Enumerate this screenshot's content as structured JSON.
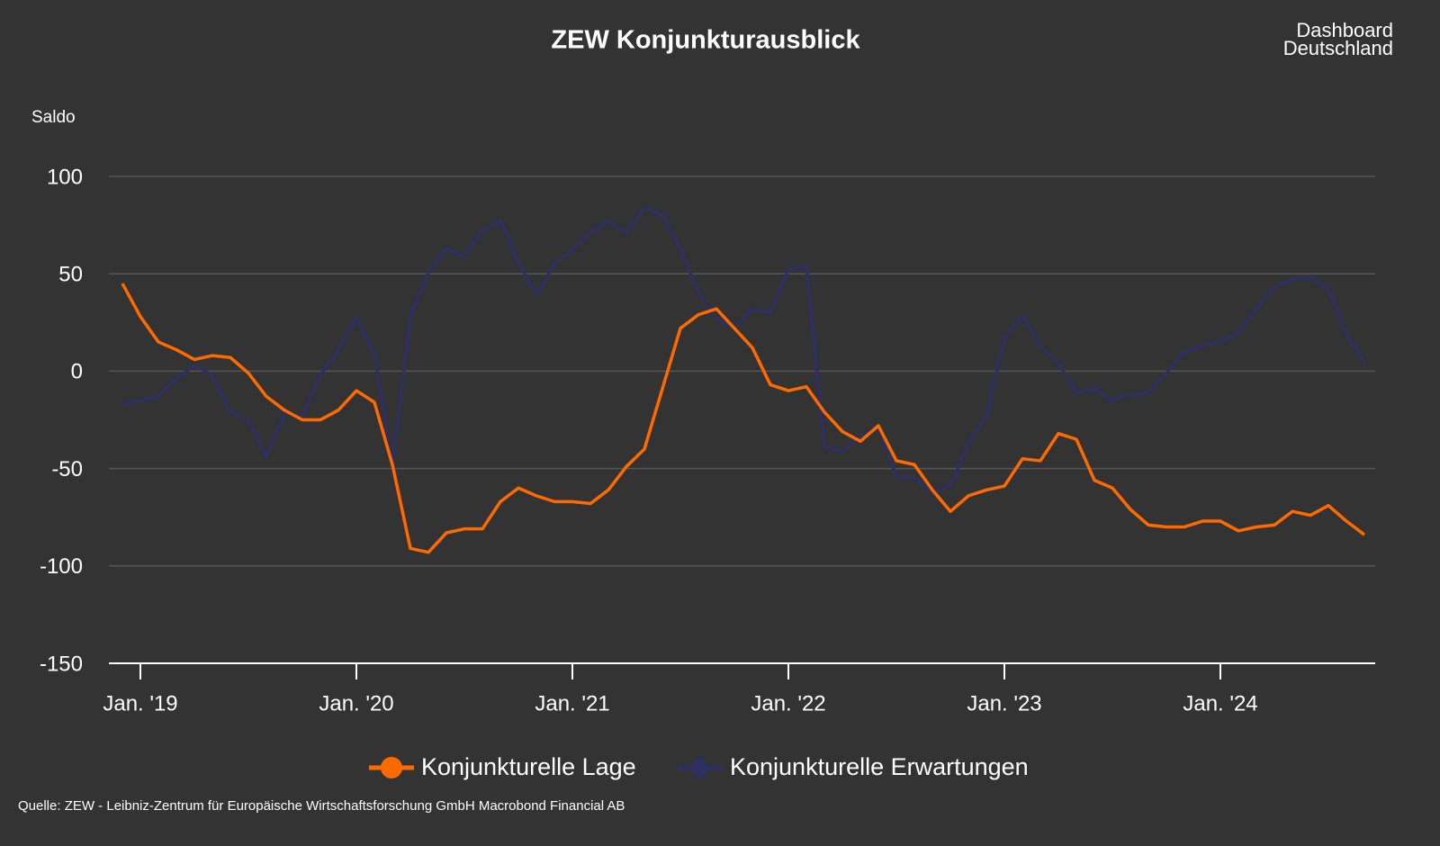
{
  "chart_data": {
    "type": "line",
    "title": "ZEW Konjunkturausblick",
    "y_label": "Saldo",
    "logo": [
      "Dashboard",
      "Deutschland"
    ],
    "source": "Quelle: ZEW - Leibniz-Zentrum für Europäische Wirtschaftsforschung GmbH Macrobond Financial AB",
    "categories": [
      null,
      "Jan. '19",
      null,
      null,
      null,
      null,
      null,
      null,
      null,
      null,
      null,
      null,
      null,
      "Jan. '20",
      null,
      null,
      null,
      null,
      null,
      null,
      null,
      null,
      null,
      null,
      null,
      "Jan. '21",
      null,
      null,
      null,
      null,
      null,
      null,
      null,
      null,
      null,
      null,
      null,
      "Jan. '22",
      null,
      null,
      null,
      null,
      null,
      null,
      null,
      null,
      null,
      null,
      null,
      "Jan. '23",
      null,
      null,
      null,
      null,
      null,
      null,
      null,
      null,
      null,
      null,
      null,
      "Jan. '24",
      null,
      null,
      null,
      null,
      null,
      null,
      null,
      null
    ],
    "series": [
      {
        "name": "Konjunkturelle Lage",
        "color": "#ff6a00",
        "marker": "circle",
        "values": [
          45,
          28,
          15,
          11,
          6,
          8,
          7,
          -1,
          -13,
          -20,
          -25,
          -25,
          -20,
          -10,
          -16,
          -48,
          -91,
          -93,
          -83,
          -81,
          -81,
          -67,
          -60,
          -64,
          -67,
          -67,
          -68,
          -61,
          -49,
          -40,
          -9,
          22,
          29,
          32,
          22,
          12,
          -7,
          -10,
          -8,
          -21,
          -31,
          -36,
          -28,
          -46,
          -48,
          -61,
          -72,
          -64,
          -61,
          -59,
          -45,
          -46,
          -32,
          -35,
          -56,
          -60,
          -71,
          -79,
          -80,
          -80,
          -77,
          -77,
          -82,
          -80,
          -79,
          -72,
          -74,
          -69,
          -77,
          -84
        ]
      },
      {
        "name": "Konjunkturelle Erwartungen",
        "color": "#2e2f63",
        "marker": "diamond",
        "values": [
          -17,
          -15,
          -13,
          -4,
          3,
          -2,
          -21,
          -25,
          -44,
          -22,
          -23,
          -2,
          11,
          27,
          9,
          -49,
          28,
          51,
          63,
          59,
          72,
          77,
          56,
          39,
          55,
          62,
          71,
          77,
          71,
          84,
          80,
          63,
          40,
          27,
          22,
          32,
          30,
          52,
          54,
          -39,
          -41,
          -34,
          -28,
          -54,
          -55,
          -62,
          -59,
          -37,
          -23,
          17,
          28,
          13,
          4,
          -11,
          -9,
          -15,
          -12,
          -11,
          -1,
          10,
          13,
          15,
          20,
          32,
          43,
          47,
          48,
          42,
          19,
          4
        ]
      }
    ],
    "ylim": [
      -150,
      100
    ],
    "yticks": [
      -150,
      -100,
      -50,
      0,
      50,
      100
    ],
    "grid": true,
    "legend": "bottom"
  }
}
